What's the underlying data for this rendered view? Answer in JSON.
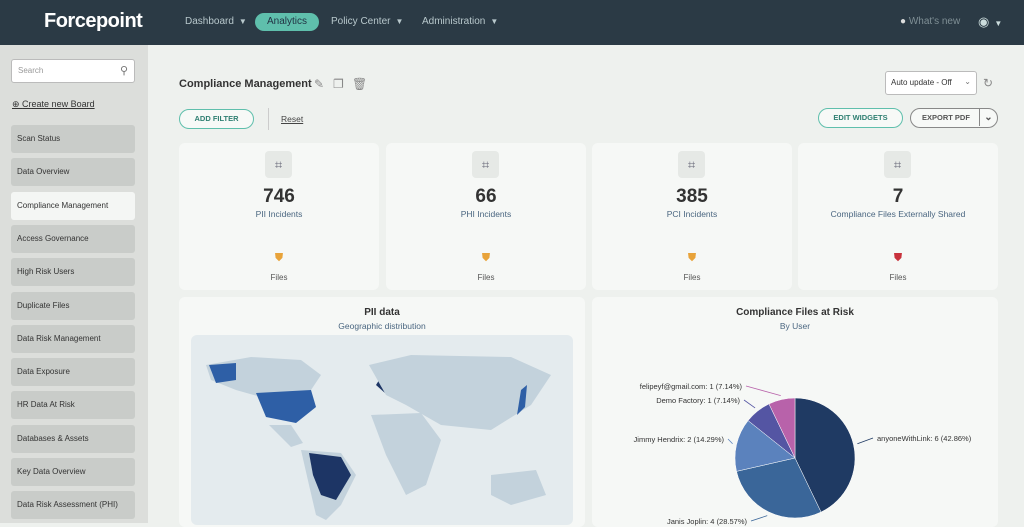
{
  "header": {
    "logo": "Forcepoint",
    "nav": [
      {
        "label": "Dashboard"
      },
      {
        "label": "Analytics"
      },
      {
        "label": "Policy Center"
      },
      {
        "label": "Administration"
      }
    ],
    "whats_new": "What's new"
  },
  "sidebar": {
    "search_placeholder": "Search",
    "create_board": "Create new Board",
    "items": [
      "Scan Status",
      "Data Overview",
      "Compliance Management",
      "Access Governance",
      "High Risk Users",
      "Duplicate Files",
      "Data Risk Management",
      "Data Exposure",
      "HR Data At Risk",
      "Databases & Assets",
      "Key Data Overview",
      "Data Risk Assessment (PHI)"
    ],
    "active": "Compliance Management"
  },
  "toolbar": {
    "title": "Compliance Management",
    "add_filter": "ADD FILTER",
    "reset": "Reset",
    "auto_update": "Auto update - Off",
    "edit_widgets": "EDIT WIDGETS",
    "export_pdf": "EXPORT PDF"
  },
  "cards": [
    {
      "value": "746",
      "label": "PII Incidents",
      "files": "Files",
      "shield_color": "#e8a33a"
    },
    {
      "value": "66",
      "label": "PHI Incidents",
      "files": "Files",
      "shield_color": "#e8a33a"
    },
    {
      "value": "385",
      "label": "PCI Incidents",
      "files": "Files",
      "shield_color": "#e8a33a"
    },
    {
      "value": "7",
      "label": "Compliance Files Externally Shared",
      "files": "Files",
      "shield_color": "#c8323c"
    }
  ],
  "map_panel": {
    "title": "PII data",
    "subtitle": "Geographic distribution"
  },
  "chart_data": {
    "type": "pie",
    "title": "Compliance Files at Risk",
    "subtitle": "By User",
    "slices": [
      {
        "label": "anyoneWithLink: 6 (42.86%)",
        "value": 6,
        "color": "#1f3a63"
      },
      {
        "label": "Janis Joplin: 4 (28.57%)",
        "value": 4,
        "color": "#3a6699"
      },
      {
        "label": "Jimmy Hendrix: 2 (14.29%)",
        "value": 2,
        "color": "#5b82bd"
      },
      {
        "label": "Demo Factory: 1 (7.14%)",
        "value": 1,
        "color": "#5455a3"
      },
      {
        "label": "felipeyf@gmail.com: 1 (7.14%)",
        "value": 1,
        "color": "#b862aa"
      }
    ]
  }
}
